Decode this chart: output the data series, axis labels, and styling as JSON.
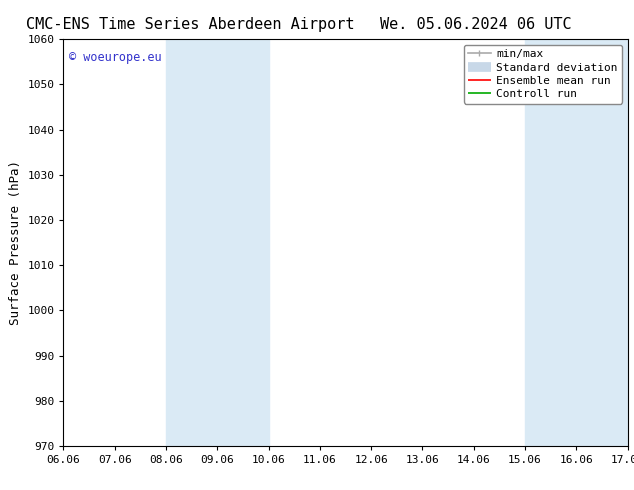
{
  "title_left": "CMC-ENS Time Series Aberdeen Airport",
  "title_right": "We. 05.06.2024 06 UTC",
  "ylabel": "Surface Pressure (hPa)",
  "ylim": [
    970,
    1060
  ],
  "yticks": [
    970,
    980,
    990,
    1000,
    1010,
    1020,
    1030,
    1040,
    1050,
    1060
  ],
  "xtick_labels": [
    "06.06",
    "07.06",
    "08.06",
    "09.06",
    "10.06",
    "11.06",
    "12.06",
    "13.06",
    "14.06",
    "15.06",
    "16.06",
    "17.06"
  ],
  "xtick_positions": [
    0,
    1,
    2,
    3,
    4,
    5,
    6,
    7,
    8,
    9,
    10,
    11
  ],
  "shade_bands": [
    {
      "xmin": 2,
      "xmax": 4,
      "color": "#daeaf5"
    },
    {
      "xmin": 9,
      "xmax": 11,
      "color": "#daeaf5"
    }
  ],
  "legend_entries": [
    {
      "label": "min/max",
      "color": "#aaaaaa",
      "lw": 1.2,
      "marker": true
    },
    {
      "label": "Standard deviation",
      "color": "#c8d8e8",
      "lw": 7,
      "marker": false
    },
    {
      "label": "Ensemble mean run",
      "color": "#ff0000",
      "lw": 1.2,
      "marker": false
    },
    {
      "label": "Controll run",
      "color": "#00aa00",
      "lw": 1.2,
      "marker": false
    }
  ],
  "watermark": "© woeurope.eu",
  "watermark_color": "#3333cc",
  "background_color": "#ffffff",
  "title_fontsize": 11,
  "ylabel_fontsize": 9,
  "tick_fontsize": 8,
  "legend_fontsize": 8
}
